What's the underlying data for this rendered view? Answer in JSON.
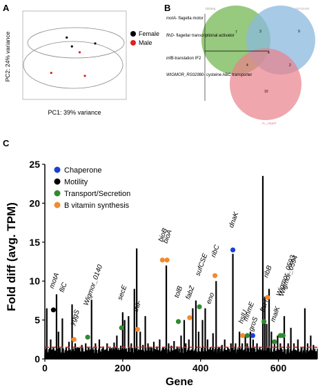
{
  "panel_a": {
    "label": "A",
    "xlabel": "PC1: 39% variance",
    "ylabel": "PC2: 24% variance",
    "legend": [
      {
        "name": "Female",
        "color": "#000000"
      },
      {
        "name": "Male",
        "color": "#e02020"
      }
    ]
  },
  "panel_b": {
    "label": "B",
    "circle_labels": [
      "DESeq",
      "Sal-DiesN",
      "AL_edgeR"
    ],
    "annotations": [
      {
        "gene": "motA",
        "desc": "- flagella motor"
      },
      {
        "gene": "flhD",
        "desc": "- flagellar transcriptional activator"
      },
      {
        "gene": "infB",
        "desc": "-translation IF2"
      },
      {
        "gene": "WIGMOR_RS029",
        "desc": "80- cysteine ABC transporter"
      }
    ],
    "region_counts": [
      "7",
      "3",
      "9",
      "4",
      "4",
      "2",
      "10"
    ],
    "colors": {
      "green": "#7dbb5e",
      "blue": "#8ab8dd",
      "red": "#e9808a"
    }
  },
  "panel_c": {
    "label": "C",
    "xlabel": "Gene",
    "ylabel": "Fold diff (avg. TPM)",
    "legend": [
      {
        "name": "Chaperone",
        "color": "#1a3fd6"
      },
      {
        "name": "Motility",
        "color": "#000000"
      },
      {
        "name": "Transport/Secretion",
        "color": "#2f8a2f"
      },
      {
        "name": "B vitamin synthesis",
        "color": "#f28a30"
      }
    ]
  },
  "chart_data": [
    {
      "type": "scatter",
      "xlabel": "PC1: 39% variance",
      "ylabel": "PC2: 24% variance",
      "xlim": [
        -20,
        20
      ],
      "ylim": [
        -15,
        15
      ],
      "series": [
        {
          "name": "Female",
          "color": "#000000",
          "points": [
            [
              -3,
              6
            ],
            [
              -1,
              3
            ],
            [
              8,
              4
            ]
          ]
        },
        {
          "name": "Male",
          "color": "#e02020",
          "points": [
            [
              2,
              1
            ],
            [
              -9,
              -6
            ],
            [
              4,
              -7
            ]
          ]
        }
      ]
    },
    {
      "type": "bar",
      "xlabel": "Gene",
      "ylabel": "Fold diff (avg. TPM)",
      "xlim": [
        0,
        700
      ],
      "ylim": [
        0,
        25
      ],
      "xticks": [
        0,
        200,
        400,
        600
      ],
      "yticks": [
        0,
        5,
        10,
        15,
        20,
        25
      ],
      "threshold": 1.5,
      "peaks": [
        [
          5,
          6.5
        ],
        [
          15,
          2.5
        ],
        [
          22,
          1.5
        ],
        [
          30,
          8.3
        ],
        [
          35,
          3.5
        ],
        [
          45,
          5.2
        ],
        [
          55,
          1.5
        ],
        [
          62,
          2.2
        ],
        [
          70,
          7.0
        ],
        [
          78,
          2.0
        ],
        [
          85,
          1.5
        ],
        [
          95,
          1.8
        ],
        [
          105,
          2.0
        ],
        [
          112,
          1.5
        ],
        [
          120,
          7.6
        ],
        [
          130,
          2.0
        ],
        [
          140,
          2.5
        ],
        [
          150,
          1.6
        ],
        [
          160,
          2.0
        ],
        [
          170,
          1.4
        ],
        [
          178,
          2.1
        ],
        [
          185,
          3.0
        ],
        [
          195,
          1.7
        ],
        [
          200,
          6.0
        ],
        [
          205,
          5.0
        ],
        [
          215,
          5.5
        ],
        [
          222,
          2.0
        ],
        [
          230,
          9.0
        ],
        [
          236,
          14.2
        ],
        [
          245,
          3.5
        ],
        [
          252,
          1.8
        ],
        [
          258,
          5.5
        ],
        [
          265,
          2.0
        ],
        [
          272,
          1.5
        ],
        [
          280,
          2.2
        ],
        [
          288,
          1.6
        ],
        [
          295,
          2.5
        ],
        [
          305,
          1.5
        ],
        [
          312,
          12.0
        ],
        [
          318,
          2.0
        ],
        [
          325,
          1.7
        ],
        [
          332,
          2.3
        ],
        [
          340,
          1.6
        ],
        [
          350,
          3.0
        ],
        [
          358,
          5.0
        ],
        [
          362,
          2.0
        ],
        [
          370,
          2.5
        ],
        [
          380,
          6.5
        ],
        [
          388,
          7.5
        ],
        [
          395,
          3.5
        ],
        [
          405,
          5.0
        ],
        [
          412,
          6.5
        ],
        [
          418,
          2.5
        ],
        [
          425,
          1.5
        ],
        [
          432,
          3.3
        ],
        [
          440,
          10.0
        ],
        [
          448,
          1.5
        ],
        [
          455,
          1.8
        ],
        [
          462,
          2.5
        ],
        [
          470,
          1.5
        ],
        [
          478,
          2.0
        ],
        [
          483,
          13.5
        ],
        [
          490,
          2.0
        ],
        [
          500,
          3.5
        ],
        [
          507,
          2.0
        ],
        [
          515,
          3.0
        ],
        [
          520,
          2.0
        ],
        [
          528,
          3.5
        ],
        [
          535,
          2.5
        ],
        [
          545,
          2.0
        ],
        [
          552,
          1.5
        ],
        [
          560,
          23.5
        ],
        [
          565,
          8.0
        ],
        [
          570,
          4.5
        ],
        [
          576,
          9.0
        ],
        [
          582,
          3.5
        ],
        [
          590,
          2.5
        ],
        [
          598,
          3.0
        ],
        [
          605,
          2.0
        ],
        [
          615,
          5.5
        ],
        [
          625,
          2.0
        ],
        [
          632,
          4.0
        ],
        [
          640,
          2.0
        ],
        [
          650,
          2.5
        ],
        [
          660,
          1.5
        ],
        [
          668,
          6.5
        ],
        [
          675,
          2.0
        ],
        [
          683,
          3.0
        ],
        [
          690,
          1.8
        ]
      ],
      "labels": [
        {
          "x": 22,
          "y": 9.0,
          "text": "motA",
          "marker": "Motility",
          "markerY": 6.3
        },
        {
          "x": 48,
          "y": 8.5,
          "text": "fliC",
          "marker": null,
          "markerY": null
        },
        {
          "x": 75,
          "y": 4.3,
          "text": "yggS",
          "marker": "B vitamin synthesis",
          "markerY": 2.5
        },
        {
          "x": 110,
          "y": 6.8,
          "text": "Wigmor_0140",
          "marker": "Transport/Secretion",
          "markerY": 2.8
        },
        {
          "x": 197,
          "y": 7.5,
          "text": "secE",
          "marker": "Transport/Secretion",
          "markerY": 4.0
        },
        {
          "x": 238,
          "y": 6.0,
          "text": "thiF",
          "marker": "B vitamin synthesis",
          "markerY": 3.8
        },
        {
          "x": 302,
          "y": 15.0,
          "text": "bioB",
          "marker": "B vitamin synthesis",
          "markerY": 12.7
        },
        {
          "x": 314,
          "y": 14.8,
          "text": "bioA",
          "marker": "B vitamin synthesis",
          "markerY": 12.7
        },
        {
          "x": 343,
          "y": 7.8,
          "text": "tolB",
          "marker": "Transport/Secretion",
          "markerY": 4.8
        },
        {
          "x": 372,
          "y": 7.6,
          "text": "fabZ",
          "marker": "B vitamin synthesis",
          "markerY": 5.3
        },
        {
          "x": 397,
          "y": 10.6,
          "text": "sufCSE",
          "marker": "Transport/Secretion",
          "markerY": 6.7
        },
        {
          "x": 425,
          "y": 7.0,
          "text": "eno",
          "marker": null,
          "markerY": null
        },
        {
          "x": 437,
          "y": 13.0,
          "text": "ribC",
          "marker": "B vitamin synthesis",
          "markerY": 10.7
        },
        {
          "x": 483,
          "y": 16.8,
          "text": "dnaK",
          "marker": "Chaperone",
          "markerY": 14.0
        },
        {
          "x": 508,
          "y": 4.5,
          "text": "hslU",
          "marker": "B vitamin synthesis",
          "markerY": 3.0
        },
        {
          "x": 520,
          "y": 4.8,
          "text": "mnmE",
          "marker": "Transport/Secretion",
          "markerY": 3.0
        },
        {
          "x": 534,
          "y": 3.5,
          "text": "groS",
          "marker": "Chaperone",
          "markerY": 3.0
        },
        {
          "x": 572,
          "y": 10.4,
          "text": "ribB",
          "marker": "B vitamin synthesis",
          "markerY": 7.9
        },
        {
          "x": 563,
          "y": 6.0,
          "text": "ftsH",
          "marker": "Transport/Secretion",
          "markerY": 4.8
        },
        {
          "x": 590,
          "y": 4.7,
          "text": "malK",
          "marker": "Transport/Secretion",
          "markerY": 2.2
        },
        {
          "x": 605,
          "y": 8.0,
          "text": "Wigmor_0593",
          "marker": "Transport/Secretion",
          "markerY": 3.0
        },
        {
          "x": 612,
          "y": 8.0,
          "text": "Wigmor_0594",
          "marker": "Transport/Secretion",
          "markerY": 3.0
        }
      ]
    }
  ]
}
